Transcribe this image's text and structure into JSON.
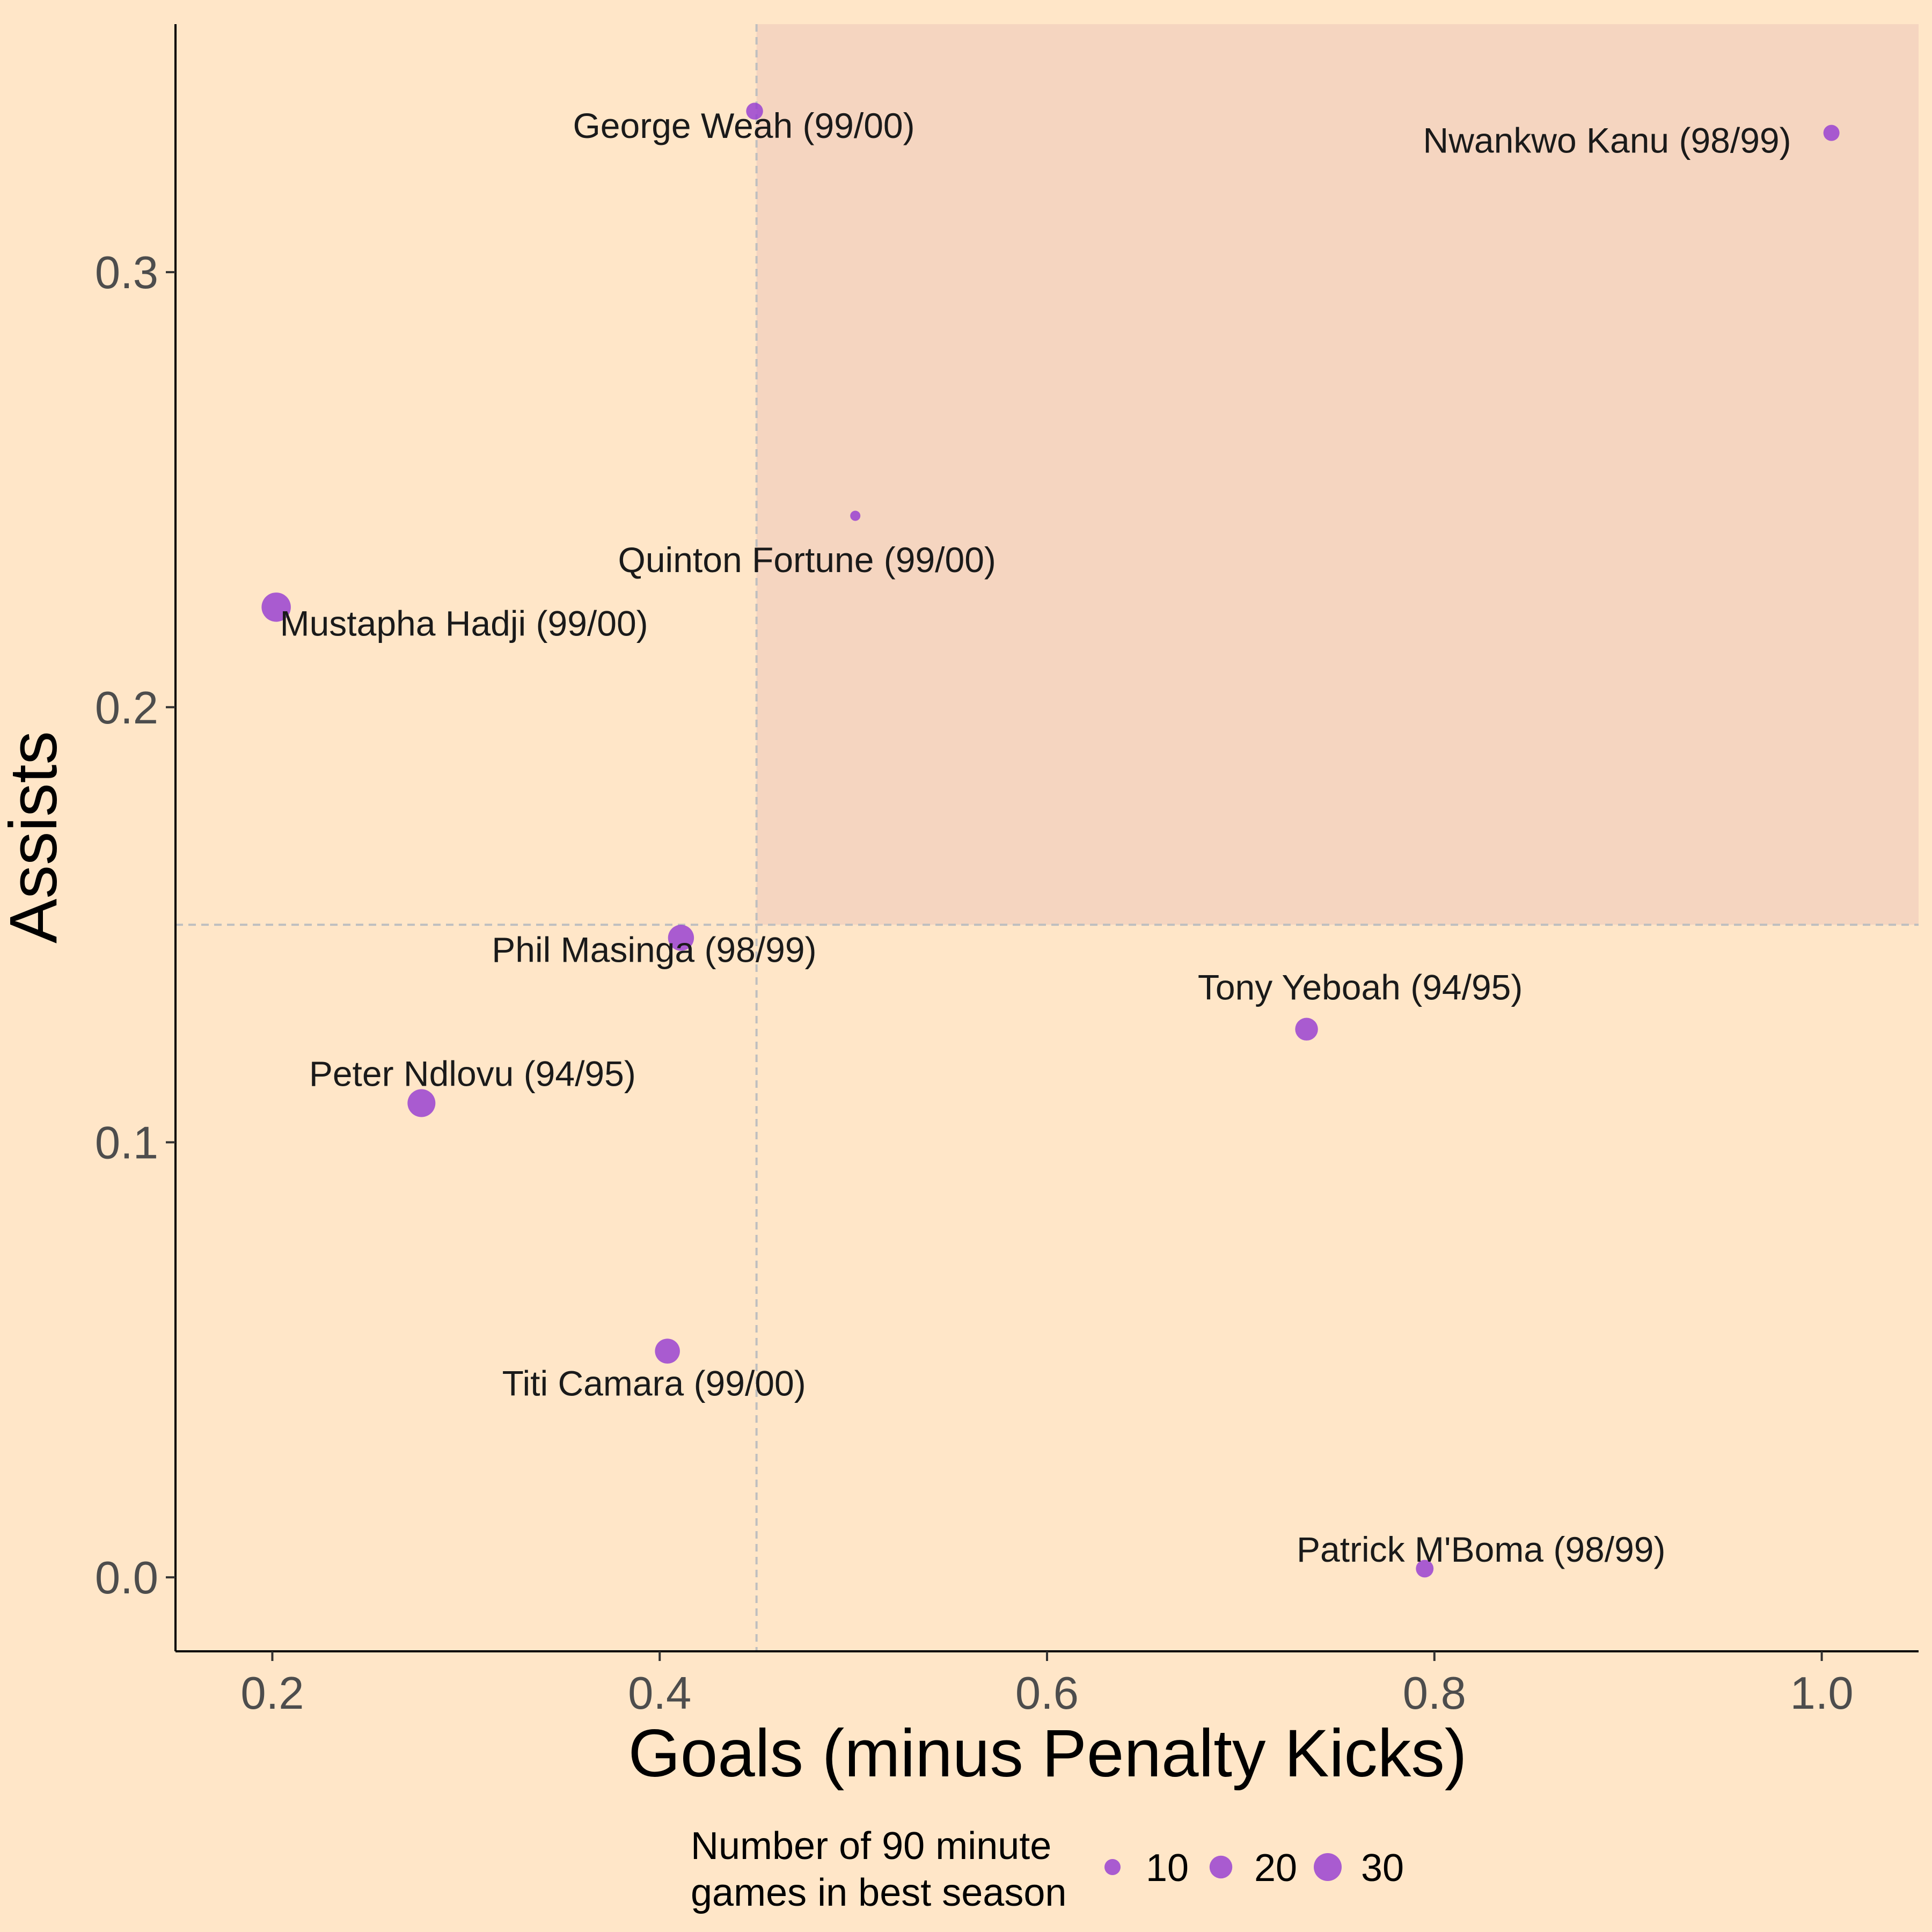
{
  "chart_data": {
    "type": "scatter",
    "xlabel": "Goals (minus Penalty Kicks)",
    "ylabel": "Assists",
    "xlim": [
      0.15,
      1.05
    ],
    "ylim": [
      -0.017,
      0.357
    ],
    "x_ticks": [
      {
        "value": 0.2,
        "label": "0.2"
      },
      {
        "value": 0.4,
        "label": "0.4"
      },
      {
        "value": 0.6,
        "label": "0.6"
      },
      {
        "value": 0.8,
        "label": "0.8"
      },
      {
        "value": 1.0,
        "label": "1.0"
      }
    ],
    "y_ticks": [
      {
        "value": 0.0,
        "label": "0.0"
      },
      {
        "value": 0.1,
        "label": "0.1"
      },
      {
        "value": 0.2,
        "label": "0.2"
      },
      {
        "value": 0.3,
        "label": "0.3"
      }
    ],
    "grid": false,
    "reference_lines": {
      "x": 0.45,
      "y": 0.15
    },
    "highlight_region": {
      "x_min": 0.45,
      "y_min": 0.15,
      "color": "#f5d5c0"
    },
    "point_color": "#9438d2",
    "points": [
      {
        "label": "George Weah (99/00)",
        "x": 0.449,
        "y": 0.337,
        "size": 11
      },
      {
        "label": "Nwankwo Kanu (98/99)",
        "x": 1.005,
        "y": 0.332,
        "size": 10
      },
      {
        "label": "Quinton Fortune (99/00)",
        "x": 0.501,
        "y": 0.244,
        "size": 4
      },
      {
        "label": "Mustapha Hadji (99/00)",
        "x": 0.202,
        "y": 0.223,
        "size": 33
      },
      {
        "label": "Phil Masinga (98/99)",
        "x": 0.411,
        "y": 0.147,
        "size": 26
      },
      {
        "label": "Tony Yeboah (94/95)",
        "x": 0.734,
        "y": 0.126,
        "size": 20
      },
      {
        "label": "Peter Ndlovu (94/95)",
        "x": 0.277,
        "y": 0.109,
        "size": 30
      },
      {
        "label": "Titi Camara (99/00)",
        "x": 0.404,
        "y": 0.052,
        "size": 24
      },
      {
        "label": "Patrick M'Boma (98/99)",
        "x": 0.795,
        "y": 0.002,
        "size": 12
      }
    ],
    "legend": {
      "title_lines": [
        "Number of 90 minute",
        "games in best season"
      ],
      "placement": "bottom",
      "entries": [
        {
          "size": 10,
          "label": "10"
        },
        {
          "size": 20,
          "label": "20"
        },
        {
          "size": 30,
          "label": "30"
        }
      ]
    }
  }
}
